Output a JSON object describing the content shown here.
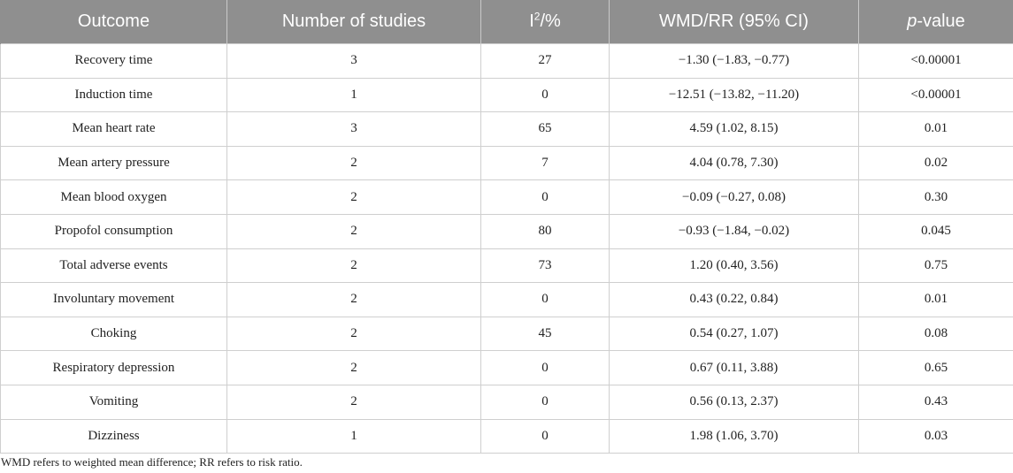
{
  "table": {
    "headers": {
      "outcome": "Outcome",
      "studies": "Number of studies",
      "i2_base": "I",
      "i2_sup": "2",
      "i2_unit": "/%",
      "estimate": "WMD/RR (95% CI)",
      "pvalue_italic": "p",
      "pvalue_rest": "-value"
    },
    "rows": [
      {
        "outcome": "Recovery time",
        "studies": "3",
        "i2": "27",
        "estimate": "−1.30 (−1.83, −0.77)",
        "p": "<0.00001"
      },
      {
        "outcome": "Induction time",
        "studies": "1",
        "i2": "0",
        "estimate": "−12.51 (−13.82, −11.20)",
        "p": "<0.00001"
      },
      {
        "outcome": "Mean heart rate",
        "studies": "3",
        "i2": "65",
        "estimate": "4.59 (1.02, 8.15)",
        "p": "0.01"
      },
      {
        "outcome": "Mean artery pressure",
        "studies": "2",
        "i2": "7",
        "estimate": "4.04 (0.78, 7.30)",
        "p": "0.02"
      },
      {
        "outcome": "Mean blood oxygen",
        "studies": "2",
        "i2": "0",
        "estimate": "−0.09 (−0.27, 0.08)",
        "p": "0.30"
      },
      {
        "outcome": "Propofol consumption",
        "studies": "2",
        "i2": "80",
        "estimate": "−0.93 (−1.84, −0.02)",
        "p": "0.045"
      },
      {
        "outcome": "Total adverse events",
        "studies": "2",
        "i2": "73",
        "estimate": "1.20 (0.40, 3.56)",
        "p": "0.75"
      },
      {
        "outcome": "Involuntary movement",
        "studies": "2",
        "i2": "0",
        "estimate": "0.43 (0.22, 0.84)",
        "p": "0.01"
      },
      {
        "outcome": "Choking",
        "studies": "2",
        "i2": "45",
        "estimate": "0.54 (0.27, 1.07)",
        "p": "0.08"
      },
      {
        "outcome": "Respiratory depression",
        "studies": "2",
        "i2": "0",
        "estimate": "0.67 (0.11, 3.88)",
        "p": "0.65"
      },
      {
        "outcome": "Vomiting",
        "studies": "2",
        "i2": "0",
        "estimate": "0.56 (0.13, 2.37)",
        "p": "0.43"
      },
      {
        "outcome": "Dizziness",
        "studies": "1",
        "i2": "0",
        "estimate": "1.98 (1.06, 3.70)",
        "p": "0.03"
      }
    ]
  },
  "footnote": "WMD refers to weighted mean difference; RR refers to risk ratio.",
  "colors": {
    "header_bg": "#8f8f8f",
    "header_text": "#ffffff",
    "grid": "#cfcfcf",
    "body_text": "#222222"
  }
}
